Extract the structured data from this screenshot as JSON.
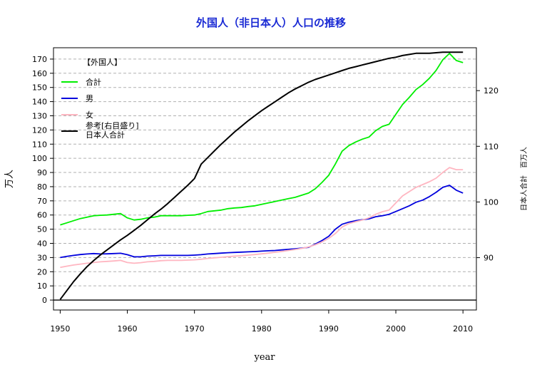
{
  "chart_data": {
    "type": "line",
    "title": "外国人（非日本人）人口の推移",
    "xlabel": "year",
    "ylabel": "万人",
    "y2label": "日本人合計　百万人",
    "legend_header": "【外国人】",
    "xlim": [
      1949,
      2012
    ],
    "ylim": [
      -7,
      178
    ],
    "y2lim": [
      80.6,
      127.7
    ],
    "xticks": [
      1950,
      1960,
      1970,
      1980,
      1990,
      2000,
      2010
    ],
    "yticks": [
      0,
      10,
      20,
      30,
      40,
      50,
      60,
      70,
      80,
      90,
      100,
      110,
      120,
      130,
      140,
      150,
      160,
      170
    ],
    "y2ticks": [
      90,
      100,
      110,
      120
    ],
    "grid": "horizontal dashed",
    "legend_position": "top-left",
    "x": [
      1950,
      1951,
      1952,
      1953,
      1954,
      1955,
      1956,
      1957,
      1958,
      1959,
      1960,
      1961,
      1962,
      1963,
      1964,
      1965,
      1966,
      1967,
      1968,
      1969,
      1970,
      1971,
      1972,
      1973,
      1974,
      1975,
      1976,
      1977,
      1978,
      1979,
      1980,
      1981,
      1982,
      1983,
      1984,
      1985,
      1986,
      1987,
      1988,
      1989,
      1990,
      1991,
      1992,
      1993,
      1994,
      1995,
      1996,
      1997,
      1998,
      1999,
      2000,
      2001,
      2002,
      2003,
      2004,
      2005,
      2006,
      2007,
      2008,
      2009,
      2010
    ],
    "series": [
      {
        "name": "合計",
        "color": "#00ee00",
        "axis": "left",
        "values": [
          53,
          54.5,
          56,
          57.5,
          58.5,
          59.5,
          59.8,
          60,
          60.5,
          61,
          58,
          56.5,
          57,
          58,
          58.5,
          59.5,
          59.5,
          59.5,
          59.5,
          59.8,
          60,
          61,
          62.5,
          63,
          63.5,
          64.5,
          65,
          65.3,
          66,
          66.5,
          67.5,
          68.5,
          69.5,
          70.5,
          71.5,
          72.5,
          74,
          75.5,
          78.5,
          83,
          88,
          96,
          105,
          109,
          111.5,
          113.5,
          115,
          119.5,
          122.5,
          124,
          131,
          138,
          143,
          148.5,
          152,
          156.5,
          162,
          169.5,
          174,
          169,
          167.5
        ]
      },
      {
        "name": "男",
        "color": "#0000dd",
        "axis": "left",
        "values": [
          30,
          30.8,
          31.5,
          32.1,
          32.5,
          32.8,
          32.5,
          32.6,
          32.8,
          33,
          32,
          30.5,
          30.5,
          31,
          31.2,
          31.5,
          31.5,
          31.5,
          31.5,
          31.5,
          31.7,
          32,
          32.5,
          32.8,
          33.1,
          33.4,
          33.6,
          33.8,
          34,
          34.2,
          34.5,
          34.8,
          35,
          35.4,
          35.8,
          36.2,
          36.7,
          37.2,
          39.5,
          42,
          45,
          50,
          53.5,
          55,
          56,
          56.7,
          57.3,
          58.8,
          59.5,
          60.5,
          62.5,
          64.5,
          66.5,
          69,
          70.5,
          73,
          76,
          79.5,
          81,
          77.5,
          75.5
        ]
      },
      {
        "name": "女",
        "color": "#ffb6c1",
        "axis": "left",
        "values": [
          23,
          23.9,
          24.7,
          25.4,
          26,
          26.5,
          27,
          27.3,
          27.6,
          28,
          26.5,
          26,
          26.4,
          27,
          27.3,
          27.8,
          28,
          28,
          28,
          28.2,
          28.4,
          28.8,
          29.4,
          29.8,
          30.2,
          30.6,
          31,
          31.3,
          31.7,
          32.1,
          32.6,
          33.1,
          33.7,
          34.3,
          35,
          35.7,
          36.5,
          37.5,
          39,
          41,
          43.5,
          47,
          51.5,
          54,
          55.3,
          56.5,
          58,
          60.5,
          62.3,
          63.5,
          68.5,
          73.5,
          76.5,
          79.5,
          81.5,
          83.5,
          86,
          90,
          93.5,
          92,
          92
        ]
      },
      {
        "name": "参考[右目盛り]\n日本人合計",
        "color": "#000000",
        "axis": "right",
        "values": [
          82.5,
          84.1,
          85.7,
          87.1,
          88.4,
          89.5,
          90.5,
          91.4,
          92.3,
          93.2,
          94,
          94.9,
          95.8,
          96.8,
          97.8,
          98.7,
          99.7,
          100.8,
          101.9,
          103,
          104.2,
          106.8,
          108,
          109.2,
          110.4,
          111.5,
          112.6,
          113.6,
          114.6,
          115.5,
          116.4,
          117.2,
          118,
          118.8,
          119.6,
          120.3,
          120.9,
          121.5,
          122,
          122.4,
          122.8,
          123.2,
          123.6,
          124,
          124.3,
          124.6,
          124.9,
          125.2,
          125.5,
          125.8,
          126,
          126.3,
          126.5,
          126.7,
          126.7,
          126.7,
          126.8,
          126.9,
          126.9,
          126.9,
          126.9
        ]
      }
    ]
  }
}
